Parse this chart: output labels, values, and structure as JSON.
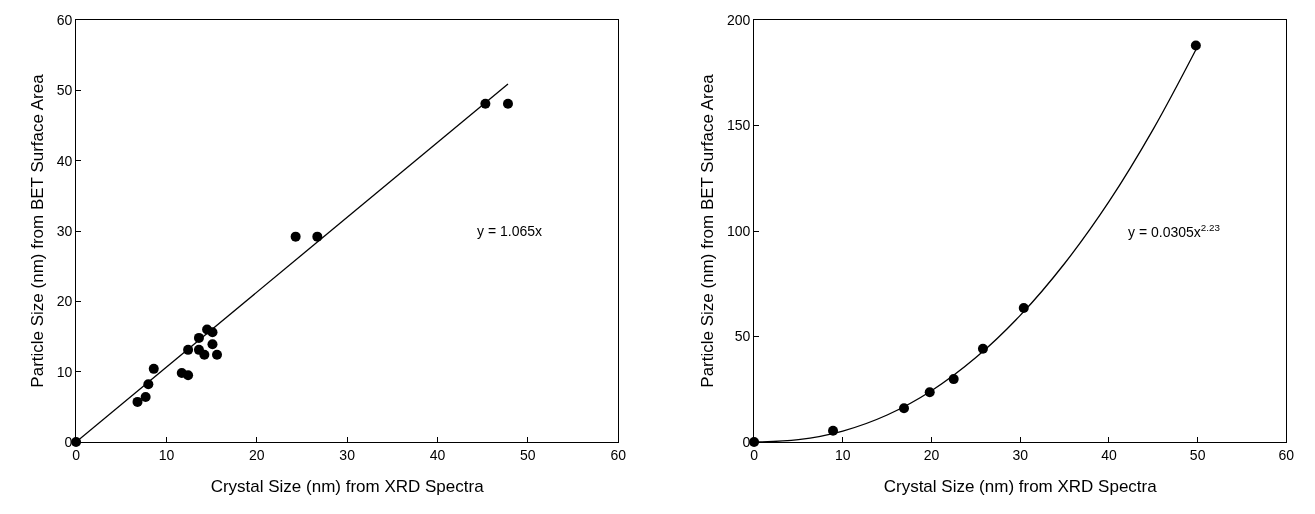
{
  "chart_data": [
    {
      "type": "scatter",
      "xlabel": "Crystal Size (nm) from XRD Spectra",
      "ylabel": "Particle Size (nm) from BET Surface Area",
      "xlim": [
        0,
        60
      ],
      "ylim": [
        0,
        60
      ],
      "xticks": [
        0,
        10,
        20,
        30,
        40,
        50,
        60
      ],
      "yticks": [
        0,
        10,
        20,
        30,
        40,
        50,
        60
      ],
      "annotations": [
        "y = 1.065x"
      ],
      "series": [
        {
          "marker": "circle",
          "color": "#000000",
          "x": [
            0,
            6.8,
            7.7,
            8.0,
            8.6,
            11.7,
            12.4,
            12.4,
            13.6,
            13.6,
            14.2,
            14.5,
            15.1,
            15.1,
            15.6,
            24.3,
            26.7,
            45.3,
            47.8
          ],
          "values": [
            0,
            5.7,
            6.4,
            8.2,
            10.4,
            9.8,
            9.5,
            13.1,
            14.8,
            13.1,
            12.4,
            16.0,
            15.6,
            13.9,
            12.4,
            29.2,
            29.2,
            48.1,
            48.1
          ]
        },
        {
          "type": "line",
          "color": "#000000",
          "x": [
            0,
            47.8
          ],
          "values": [
            0,
            50.9
          ]
        }
      ]
    },
    {
      "type": "scatter",
      "xlabel": "Crystal Size (nm) from XRD Spectra",
      "ylabel": "Particle Size (nm) from BET Surface Area",
      "xlim": [
        0,
        60
      ],
      "ylim": [
        0,
        200
      ],
      "xticks": [
        0,
        10,
        20,
        30,
        40,
        50,
        60
      ],
      "yticks": [
        0,
        50,
        100,
        150,
        200
      ],
      "annotations": [
        "y = 0.0305x$^{2.23}$"
      ],
      "series": [
        {
          "marker": "circle",
          "color": "#000000",
          "x": [
            0,
            8.9,
            16.9,
            19.8,
            22.5,
            25.8,
            30.4,
            49.8
          ],
          "values": [
            0,
            5.3,
            16.0,
            23.6,
            29.8,
            44.2,
            63.5,
            187.9
          ]
        },
        {
          "type": "line",
          "color": "#000000",
          "x": [
            0,
            5,
            10,
            15,
            20,
            25,
            30,
            35,
            40,
            45,
            49.8
          ],
          "values": [
            0,
            1.1,
            5.2,
            12.8,
            24.3,
            40.0,
            60.0,
            84.6,
            113.9,
            148.3,
            185.9
          ]
        }
      ]
    }
  ]
}
